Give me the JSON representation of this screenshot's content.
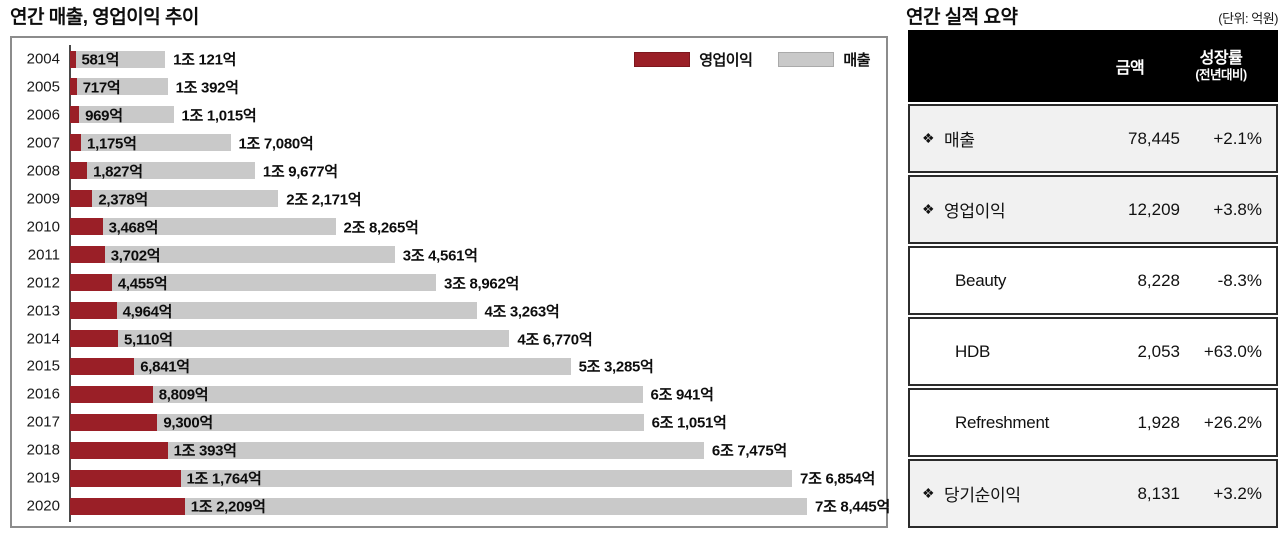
{
  "colors": {
    "operating_profit": "#9a1f27",
    "revenue": "#c9c9c9",
    "panel_border": "#8c8c8c",
    "table_border": "#2b2b2b",
    "table_header_bg": "#000000",
    "shaded_row_bg": "#f1f1f1"
  },
  "chart": {
    "title": "연간 매출, 영업이익 추이"
  },
  "chart_data": {
    "type": "bar",
    "orientation": "horizontal",
    "title": "연간 매출, 영업이익 추이",
    "unit": "억원",
    "xlim": [
      0,
      78445
    ],
    "grid": false,
    "legend_position": "top-right",
    "categories": [
      "2004",
      "2005",
      "2006",
      "2007",
      "2008",
      "2009",
      "2010",
      "2011",
      "2012",
      "2013",
      "2014",
      "2015",
      "2016",
      "2017",
      "2018",
      "2019",
      "2020"
    ],
    "series": [
      {
        "name": "영업이익",
        "color": "#9a1f27",
        "values": [
          581,
          717,
          969,
          1175,
          1827,
          2378,
          3468,
          3702,
          4455,
          4964,
          5110,
          6841,
          8809,
          9300,
          10393,
          11764,
          12209
        ],
        "labels": [
          "581억",
          "717억",
          "969억",
          "1,175억",
          "1,827억",
          "2,378억",
          "3,468억",
          "3,702억",
          "4,455억",
          "4,964억",
          "5,110억",
          "6,841억",
          "8,809억",
          "9,300억",
          "1조 393억",
          "1조 1,764억",
          "1조 2,209억"
        ]
      },
      {
        "name": "매출",
        "color": "#c9c9c9",
        "values": [
          10121,
          10392,
          11015,
          17080,
          19677,
          22171,
          28265,
          34561,
          38962,
          43263,
          46770,
          53285,
          60941,
          61051,
          67475,
          76854,
          78445
        ],
        "labels": [
          "1조 121억",
          "1조 392억",
          "1조 1,015억",
          "1조 7,080억",
          "1조 9,677억",
          "2조 2,171억",
          "2조 8,265억",
          "3조 4,561억",
          "3조 8,962억",
          "4조 3,263억",
          "4조 6,770억",
          "5조 3,285억",
          "6조 941억",
          "6조 1,051억",
          "6조 7,475억",
          "7조 6,854억",
          "7조 8,445억"
        ]
      }
    ]
  },
  "summary_table": {
    "title": "연간 실적 요약",
    "unit_note": "(단위: 억원)",
    "columns": [
      "금액",
      "성장률"
    ],
    "column_subnote": "(전년대비)",
    "bullet_glyph": "❖",
    "rows": [
      {
        "label": "매출",
        "bullet": true,
        "amount": "78,445",
        "growth": "+2.1%",
        "shaded": true
      },
      {
        "label": "영업이익",
        "bullet": true,
        "amount": "12,209",
        "growth": "+3.8%",
        "shaded": true
      },
      {
        "label": "Beauty",
        "bullet": false,
        "amount": "8,228",
        "growth": "-8.3%",
        "shaded": false
      },
      {
        "label": "HDB",
        "bullet": false,
        "amount": "2,053",
        "growth": "+63.0%",
        "shaded": false
      },
      {
        "label": "Refreshment",
        "bullet": false,
        "amount": "1,928",
        "growth": "+26.2%",
        "shaded": false
      },
      {
        "label": "당기순이익",
        "bullet": true,
        "amount": "8,131",
        "growth": "+3.2%",
        "shaded": true
      }
    ]
  }
}
